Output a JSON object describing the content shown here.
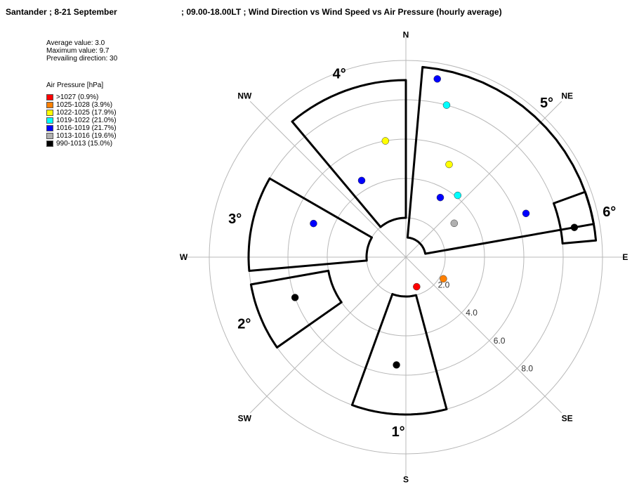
{
  "header": {
    "title_left": "Santander ; 8-21 September",
    "title_right": "; 09.00-18.00LT ; Wind Direction vs Wind Speed vs Air Pressure (hourly average)"
  },
  "stats": {
    "average": "Average value:  3.0",
    "maximum": "Maximum value:  9.7",
    "prevailing": "Prevailing direction:  30"
  },
  "legend": {
    "title": "Air Pressure [hPa]",
    "items": [
      {
        "label": ">1027 (0.9%)",
        "color": "#ff0000"
      },
      {
        "label": "1025-1028 (3.9%)",
        "color": "#ff8000"
      },
      {
        "label": "1022-1025 (17.9%)",
        "color": "#ffff00"
      },
      {
        "label": "1019-1022 (21.0%)",
        "color": "#00ffff"
      },
      {
        "label": "1016-1019 (21.7%)",
        "color": "#0000ff"
      },
      {
        "label": "1013-1016 (19.6%)",
        "color": "#b0b0b0"
      },
      {
        "label": "990-1013 (15.0%)",
        "color": "#000000"
      }
    ]
  },
  "chart_data": {
    "type": "scatter",
    "subtype": "polar",
    "directions": [
      "N",
      "NE",
      "E",
      "SE",
      "S",
      "SW",
      "W",
      "NW"
    ],
    "radial_ticks": [
      "2.0",
      "4.0",
      "6.0",
      "8.0"
    ],
    "radial_range": [
      0,
      10
    ],
    "grid": true,
    "legend_placement": "top-left",
    "cluster_labels": [
      "1°",
      "2°",
      "3°",
      "4°",
      "5°",
      "6°"
    ],
    "clusters": [
      {
        "label": "1°",
        "dir_range": [
          165,
          200
        ],
        "speed_range": [
          2,
          8
        ]
      },
      {
        "label": "2°",
        "dir_range": [
          235,
          260
        ],
        "speed_range": [
          4,
          8
        ]
      },
      {
        "label": "3°",
        "dir_range": [
          265,
          300
        ],
        "speed_range": [
          2,
          8
        ]
      },
      {
        "label": "4°",
        "dir_range": [
          320,
          360
        ],
        "speed_range": [
          2,
          9
        ]
      },
      {
        "label": "5°",
        "dir_range": [
          5,
          80
        ],
        "speed_range": [
          1,
          9.7
        ]
      },
      {
        "label": "6°",
        "dir_range": [
          70,
          85
        ],
        "speed_range": [
          8,
          9.7
        ]
      }
    ],
    "points": [
      {
        "dir": 30,
        "speed": 3.5,
        "pressure": "1016-1019"
      },
      {
        "dir": 25,
        "speed": 5.2,
        "pressure": "1022-1025"
      },
      {
        "dir": 40,
        "speed": 4.1,
        "pressure": "1019-1022"
      },
      {
        "dir": 55,
        "speed": 3.0,
        "pressure": "1013-1016"
      },
      {
        "dir": 70,
        "speed": 6.5,
        "pressure": "1016-1019"
      },
      {
        "dir": 80,
        "speed": 8.7,
        "pressure": "990-1013"
      },
      {
        "dir": 15,
        "speed": 8.0,
        "pressure": "1019-1022"
      },
      {
        "dir": 10,
        "speed": 9.2,
        "pressure": "1016-1019"
      },
      {
        "dir": 350,
        "speed": 6.0,
        "pressure": "1022-1025"
      },
      {
        "dir": 330,
        "speed": 4.5,
        "pressure": "1016-1019"
      },
      {
        "dir": 290,
        "speed": 5.0,
        "pressure": "1016-1019"
      },
      {
        "dir": 250,
        "speed": 6.0,
        "pressure": "990-1013"
      },
      {
        "dir": 185,
        "speed": 5.5,
        "pressure": "990-1013"
      },
      {
        "dir": 160,
        "speed": 1.6,
        "pressure": ">1027"
      },
      {
        "dir": 120,
        "speed": 2.2,
        "pressure": "1025-1028"
      }
    ]
  }
}
